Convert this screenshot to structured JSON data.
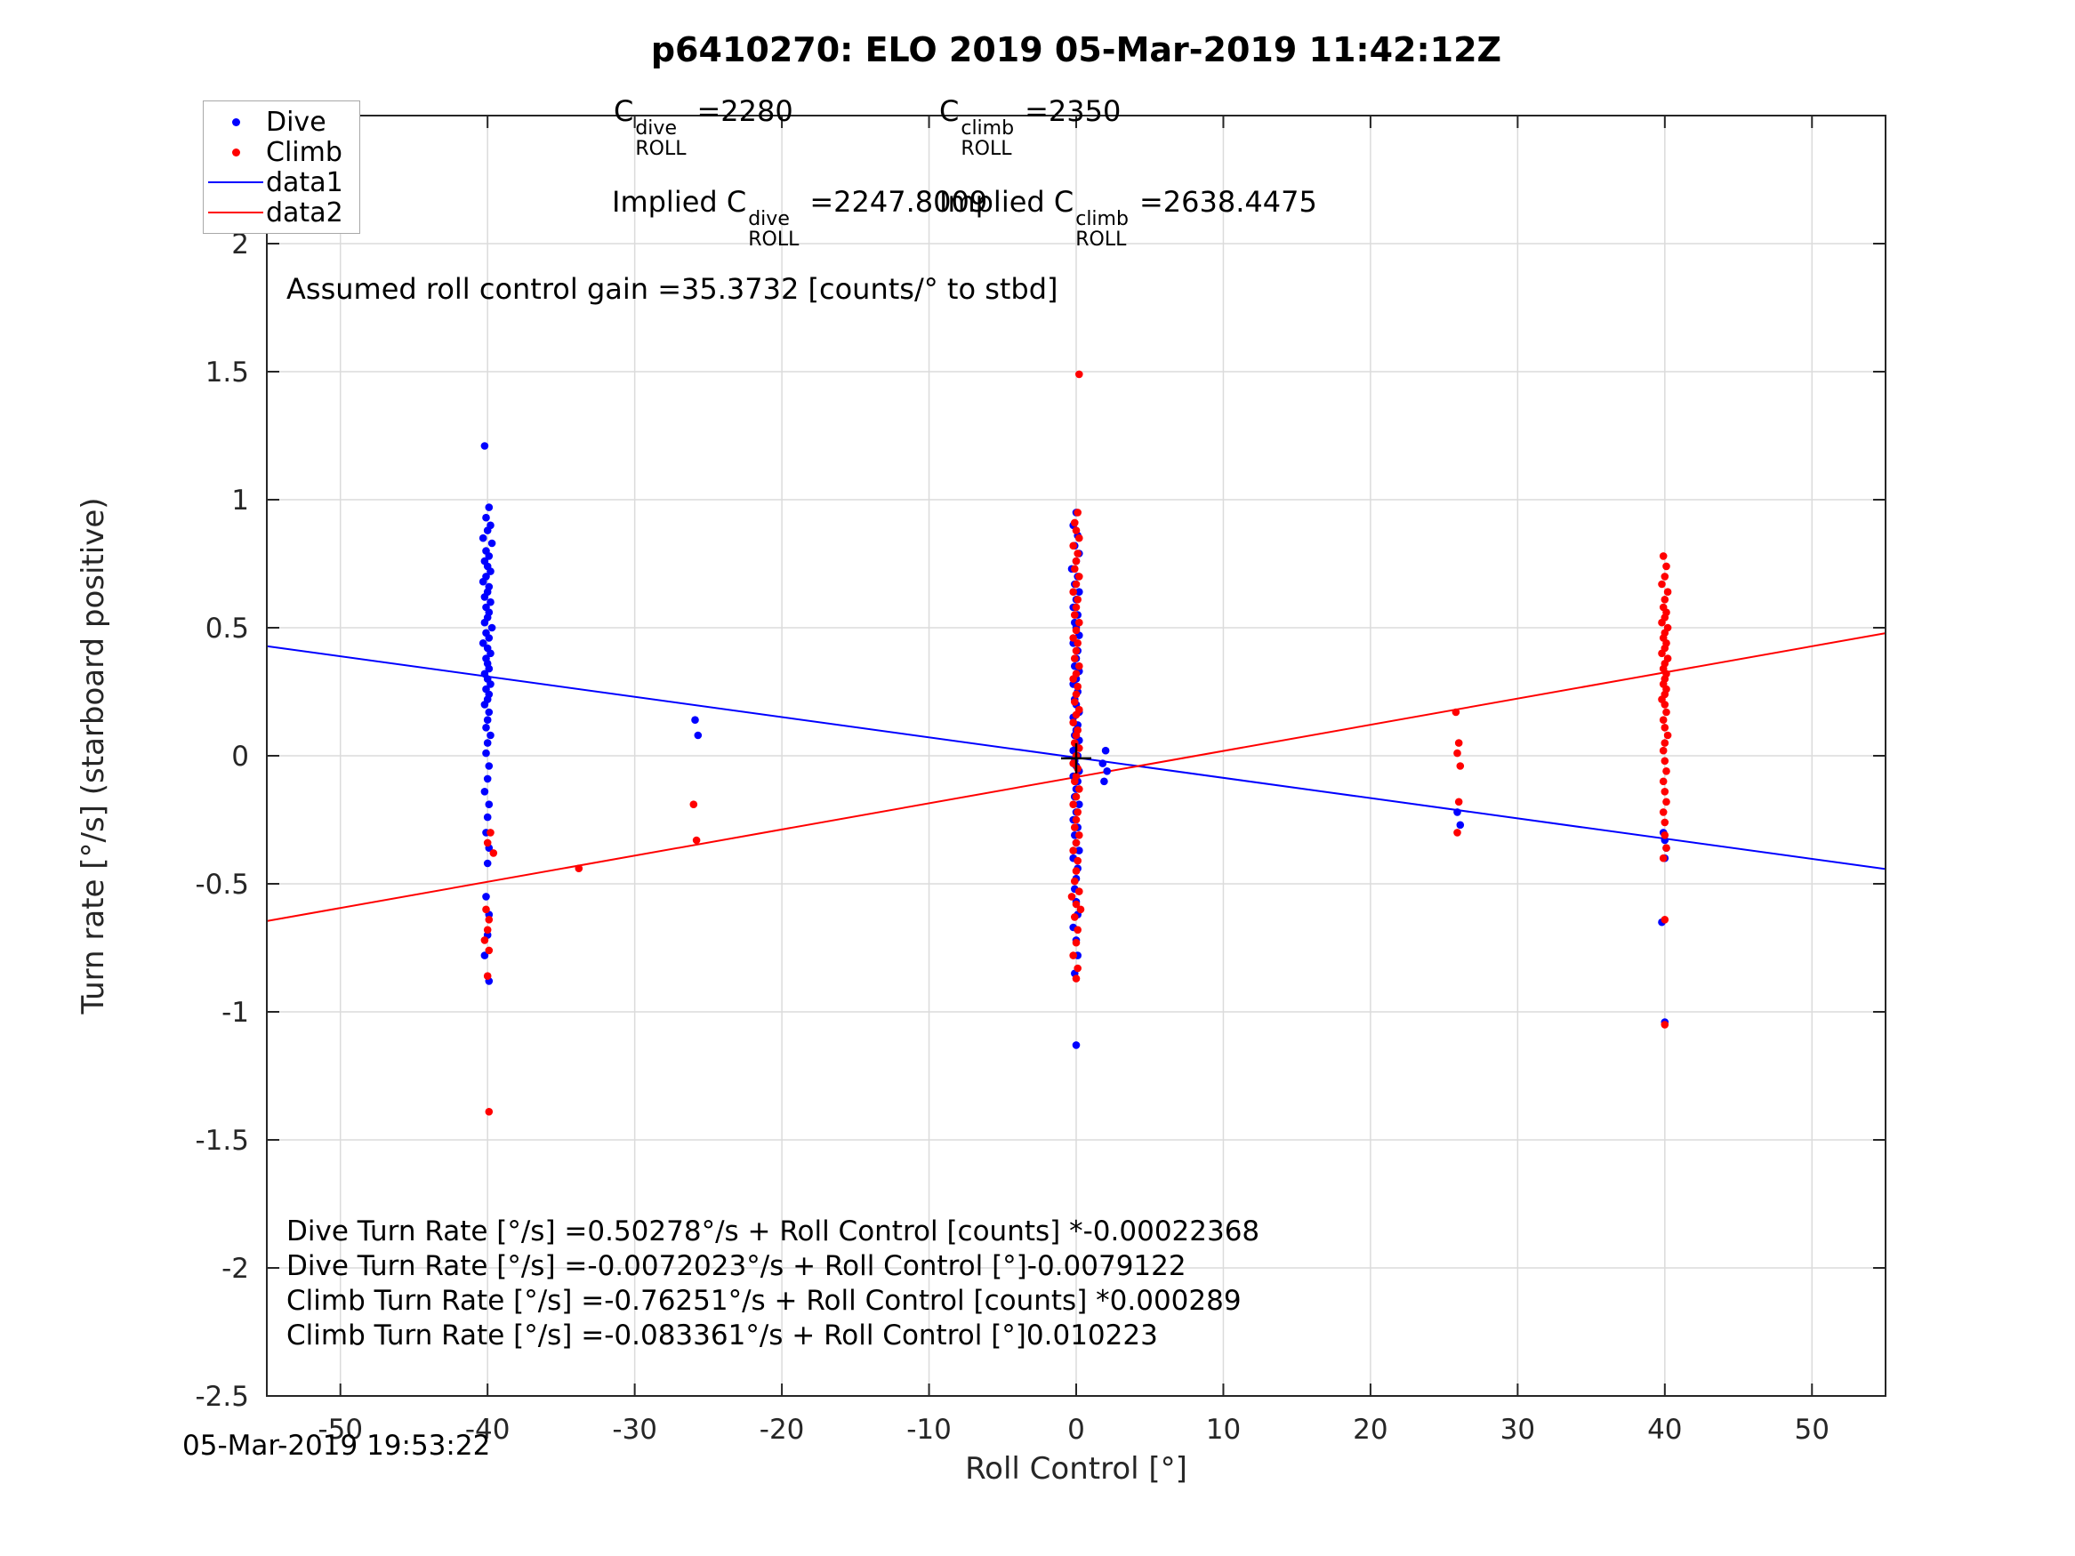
{
  "title": "p6410270: ELO 2019 05-Mar-2019 11:42:12Z",
  "timestamp": "05-Mar-2019 19:53:22",
  "legend": {
    "items": [
      {
        "label": "Dive",
        "marker": "dot",
        "color": "#0000ff"
      },
      {
        "label": "Climb",
        "marker": "dot",
        "color": "#ff0000"
      },
      {
        "label": "data1",
        "marker": "line",
        "color": "#0000ff"
      },
      {
        "label": "data2",
        "marker": "line",
        "color": "#ff0000"
      }
    ]
  },
  "annotations": {
    "c_dive": {
      "pre": "C",
      "sup": "dive",
      "sub": "ROLL",
      "val": "=2280"
    },
    "c_climb": {
      "pre": "C",
      "sup": "climb",
      "sub": "ROLL",
      "val": "=2350"
    },
    "implied_dive": {
      "pre": "Implied C",
      "sup": "dive",
      "sub": "ROLL",
      "val": "=2247.8009"
    },
    "implied_climb": {
      "pre": "Implied C",
      "sup": "climb",
      "sub": "ROLL",
      "val": "=2638.4475"
    },
    "gain": "Assumed roll control gain =35.3732 [counts/° to stbd]",
    "equations": [
      "Dive Turn Rate [°/s] =0.50278°/s + Roll Control [counts] *-0.00022368",
      "Dive Turn Rate [°/s] =-0.0072023°/s + Roll Control [°]-0.0079122",
      "Climb Turn Rate [°/s] =-0.76251°/s + Roll Control [counts] *0.000289",
      "Climb Turn Rate [°/s] =-0.083361°/s + Roll Control [°]0.010223"
    ]
  },
  "chart_data": {
    "type": "scatter",
    "title": "p6410270: ELO 2019 05-Mar-2019 11:42:12Z",
    "xlabel": "Roll Control [°]",
    "ylabel": "Turn rate [°/s] (starboard positive)",
    "xlim": [
      -55,
      55
    ],
    "ylim": [
      -2.5,
      2.5
    ],
    "xticks": [
      -50,
      -40,
      -30,
      -20,
      -10,
      0,
      10,
      20,
      30,
      40,
      50
    ],
    "yticks": [
      -2.5,
      -2,
      -1.5,
      -1,
      -0.5,
      0,
      0.5,
      1,
      1.5,
      2,
      2.5
    ],
    "xtick_labels": [
      "-50",
      "-40",
      "-30",
      "-20",
      "-10",
      "0",
      "10",
      "20",
      "30",
      "40",
      "50"
    ],
    "ytick_labels": [
      "-2.5",
      "-2",
      "-1.5",
      "-1",
      "-0.5",
      "0",
      "0.5",
      "1",
      "1.5",
      "2",
      "2.5"
    ],
    "grid": true,
    "legend_position": "top-left",
    "style": {
      "axis_color": "#262626",
      "grid_color": "#dbdbdb",
      "background": "#ffffff"
    },
    "plus_marker": [
      0,
      -0.01
    ],
    "fit_lines": [
      {
        "name": "data1",
        "color": "#0000ff",
        "slope": -0.0079122,
        "intercept": -0.0072023
      },
      {
        "name": "data2",
        "color": "#ff0000",
        "slope": 0.010223,
        "intercept": -0.083361
      }
    ],
    "series": [
      {
        "name": "Dive",
        "color": "#0000ff",
        "marker": "dot",
        "points": [
          [
            -40.2,
            1.21
          ],
          [
            -39.9,
            0.97
          ],
          [
            -40.1,
            0.93
          ],
          [
            -39.8,
            0.9
          ],
          [
            -40.0,
            0.88
          ],
          [
            -40.3,
            0.85
          ],
          [
            -39.7,
            0.83
          ],
          [
            -40.1,
            0.8
          ],
          [
            -39.9,
            0.78
          ],
          [
            -40.2,
            0.76
          ],
          [
            -40.0,
            0.74
          ],
          [
            -39.8,
            0.72
          ],
          [
            -40.1,
            0.7
          ],
          [
            -40.3,
            0.68
          ],
          [
            -39.9,
            0.66
          ],
          [
            -40.0,
            0.64
          ],
          [
            -40.2,
            0.62
          ],
          [
            -39.8,
            0.6
          ],
          [
            -40.1,
            0.58
          ],
          [
            -39.9,
            0.56
          ],
          [
            -40.0,
            0.54
          ],
          [
            -40.2,
            0.52
          ],
          [
            -39.7,
            0.5
          ],
          [
            -40.1,
            0.48
          ],
          [
            -39.9,
            0.46
          ],
          [
            -40.3,
            0.44
          ],
          [
            -40.0,
            0.42
          ],
          [
            -39.8,
            0.4
          ],
          [
            -40.1,
            0.38
          ],
          [
            -40.0,
            0.36
          ],
          [
            -39.9,
            0.34
          ],
          [
            -40.2,
            0.32
          ],
          [
            -40.0,
            0.3
          ],
          [
            -39.8,
            0.28
          ],
          [
            -40.1,
            0.26
          ],
          [
            -39.9,
            0.24
          ],
          [
            -40.0,
            0.22
          ],
          [
            -40.2,
            0.2
          ],
          [
            -39.9,
            0.17
          ],
          [
            -40.0,
            0.14
          ],
          [
            -40.1,
            0.11
          ],
          [
            -39.8,
            0.08
          ],
          [
            -40.0,
            0.05
          ],
          [
            -40.1,
            0.01
          ],
          [
            -39.9,
            -0.04
          ],
          [
            -40.0,
            -0.09
          ],
          [
            -40.2,
            -0.14
          ],
          [
            -39.9,
            -0.19
          ],
          [
            -40.0,
            -0.24
          ],
          [
            -40.1,
            -0.3
          ],
          [
            -39.9,
            -0.36
          ],
          [
            -40.0,
            -0.42
          ],
          [
            -40.1,
            -0.55
          ],
          [
            -39.9,
            -0.62
          ],
          [
            -40.0,
            -0.7
          ],
          [
            -40.2,
            -0.78
          ],
          [
            -39.9,
            -0.88
          ],
          [
            -25.9,
            0.14
          ],
          [
            -25.7,
            0.08
          ],
          [
            0.0,
            0.95
          ],
          [
            -0.2,
            0.9
          ],
          [
            0.1,
            0.86
          ],
          [
            -0.1,
            0.82
          ],
          [
            0.2,
            0.79
          ],
          [
            0.0,
            0.76
          ],
          [
            -0.3,
            0.73
          ],
          [
            0.1,
            0.7
          ],
          [
            -0.1,
            0.67
          ],
          [
            0.2,
            0.64
          ],
          [
            0.0,
            0.61
          ],
          [
            -0.2,
            0.58
          ],
          [
            0.1,
            0.55
          ],
          [
            -0.1,
            0.52
          ],
          [
            0.0,
            0.5
          ],
          [
            0.2,
            0.47
          ],
          [
            -0.2,
            0.44
          ],
          [
            0.1,
            0.41
          ],
          [
            0.0,
            0.38
          ],
          [
            -0.1,
            0.35
          ],
          [
            0.2,
            0.33
          ],
          [
            0.0,
            0.3
          ],
          [
            -0.2,
            0.28
          ],
          [
            0.1,
            0.25
          ],
          [
            -0.1,
            0.22
          ],
          [
            0.0,
            0.2
          ],
          [
            0.2,
            0.17
          ],
          [
            -0.2,
            0.15
          ],
          [
            0.1,
            0.12
          ],
          [
            0.0,
            0.1
          ],
          [
            -0.1,
            0.08
          ],
          [
            0.2,
            0.06
          ],
          [
            0.0,
            0.04
          ],
          [
            -0.2,
            0.02
          ],
          [
            0.1,
            0.0
          ],
          [
            -0.1,
            -0.02
          ],
          [
            0.0,
            -0.04
          ],
          [
            0.2,
            -0.06
          ],
          [
            -0.2,
            -0.08
          ],
          [
            0.1,
            -0.1
          ],
          [
            0.0,
            -0.13
          ],
          [
            -0.1,
            -0.16
          ],
          [
            0.2,
            -0.19
          ],
          [
            0.0,
            -0.22
          ],
          [
            -0.2,
            -0.25
          ],
          [
            0.1,
            -0.28
          ],
          [
            -0.1,
            -0.31
          ],
          [
            0.0,
            -0.34
          ],
          [
            0.2,
            -0.37
          ],
          [
            -0.2,
            -0.4
          ],
          [
            0.1,
            -0.44
          ],
          [
            0.0,
            -0.48
          ],
          [
            -0.1,
            -0.52
          ],
          [
            0.0,
            -0.57
          ],
          [
            0.1,
            -0.62
          ],
          [
            -0.2,
            -0.67
          ],
          [
            0.0,
            -0.72
          ],
          [
            0.1,
            -0.78
          ],
          [
            -0.1,
            -0.85
          ],
          [
            0.0,
            -1.13
          ],
          [
            1.8,
            -0.03
          ],
          [
            2.1,
            -0.06
          ],
          [
            1.9,
            -0.1
          ],
          [
            2.0,
            0.02
          ],
          [
            25.9,
            -0.22
          ],
          [
            26.1,
            -0.27
          ],
          [
            39.9,
            -0.3
          ],
          [
            40.0,
            -0.33
          ],
          [
            40.1,
            -0.36
          ],
          [
            40.0,
            -0.4
          ],
          [
            39.8,
            -0.65
          ],
          [
            40.0,
            -1.04
          ]
        ]
      },
      {
        "name": "Climb",
        "color": "#ff0000",
        "marker": "dot",
        "points": [
          [
            -39.8,
            -0.3
          ],
          [
            -40.0,
            -0.34
          ],
          [
            -39.6,
            -0.38
          ],
          [
            -40.1,
            -0.6
          ],
          [
            -39.9,
            -0.64
          ],
          [
            -40.0,
            -0.68
          ],
          [
            -40.2,
            -0.72
          ],
          [
            -39.9,
            -0.76
          ],
          [
            -40.0,
            -0.86
          ],
          [
            -39.9,
            -1.39
          ],
          [
            -33.8,
            -0.44
          ],
          [
            -26.0,
            -0.19
          ],
          [
            -25.8,
            -0.33
          ],
          [
            0.2,
            1.49
          ],
          [
            0.1,
            0.95
          ],
          [
            -0.1,
            0.91
          ],
          [
            0.0,
            0.88
          ],
          [
            0.2,
            0.85
          ],
          [
            -0.2,
            0.82
          ],
          [
            0.1,
            0.79
          ],
          [
            0.0,
            0.76
          ],
          [
            -0.1,
            0.73
          ],
          [
            0.2,
            0.7
          ],
          [
            0.0,
            0.67
          ],
          [
            -0.2,
            0.64
          ],
          [
            0.1,
            0.61
          ],
          [
            0.0,
            0.58
          ],
          [
            -0.1,
            0.55
          ],
          [
            0.2,
            0.52
          ],
          [
            0.0,
            0.49
          ],
          [
            -0.2,
            0.46
          ],
          [
            0.1,
            0.44
          ],
          [
            0.0,
            0.41
          ],
          [
            -0.1,
            0.38
          ],
          [
            0.2,
            0.35
          ],
          [
            0.0,
            0.32
          ],
          [
            -0.2,
            0.3
          ],
          [
            0.1,
            0.27
          ],
          [
            0.0,
            0.24
          ],
          [
            -0.1,
            0.21
          ],
          [
            0.2,
            0.18
          ],
          [
            0.0,
            0.16
          ],
          [
            -0.2,
            0.13
          ],
          [
            0.1,
            0.1
          ],
          [
            0.0,
            0.08
          ],
          [
            -0.1,
            0.05
          ],
          [
            0.2,
            0.03
          ],
          [
            0.0,
            0.0
          ],
          [
            -0.2,
            -0.03
          ],
          [
            0.1,
            -0.05
          ],
          [
            0.0,
            -0.08
          ],
          [
            -0.1,
            -0.1
          ],
          [
            0.2,
            -0.13
          ],
          [
            0.0,
            -0.16
          ],
          [
            -0.2,
            -0.19
          ],
          [
            0.1,
            -0.22
          ],
          [
            0.0,
            -0.25
          ],
          [
            -0.1,
            -0.28
          ],
          [
            0.2,
            -0.31
          ],
          [
            0.0,
            -0.34
          ],
          [
            -0.2,
            -0.37
          ],
          [
            0.1,
            -0.41
          ],
          [
            0.0,
            -0.45
          ],
          [
            -0.1,
            -0.49
          ],
          [
            0.2,
            -0.53
          ],
          [
            -0.3,
            -0.55
          ],
          [
            0.0,
            -0.58
          ],
          [
            0.3,
            -0.6
          ],
          [
            -0.1,
            -0.63
          ],
          [
            0.1,
            -0.68
          ],
          [
            0.0,
            -0.73
          ],
          [
            -0.2,
            -0.78
          ],
          [
            0.1,
            -0.83
          ],
          [
            0.0,
            -0.87
          ],
          [
            25.8,
            0.17
          ],
          [
            26.0,
            0.05
          ],
          [
            25.9,
            0.01
          ],
          [
            26.1,
            -0.04
          ],
          [
            26.0,
            -0.18
          ],
          [
            25.9,
            -0.3
          ],
          [
            39.9,
            0.78
          ],
          [
            40.1,
            0.74
          ],
          [
            40.0,
            0.7
          ],
          [
            39.8,
            0.67
          ],
          [
            40.2,
            0.64
          ],
          [
            40.0,
            0.61
          ],
          [
            39.9,
            0.58
          ],
          [
            40.1,
            0.56
          ],
          [
            40.0,
            0.54
          ],
          [
            39.8,
            0.52
          ],
          [
            40.2,
            0.5
          ],
          [
            40.0,
            0.48
          ],
          [
            39.9,
            0.46
          ],
          [
            40.1,
            0.44
          ],
          [
            40.0,
            0.42
          ],
          [
            39.8,
            0.4
          ],
          [
            40.2,
            0.38
          ],
          [
            40.0,
            0.36
          ],
          [
            39.9,
            0.34
          ],
          [
            40.1,
            0.32
          ],
          [
            40.0,
            0.3
          ],
          [
            39.9,
            0.28
          ],
          [
            40.1,
            0.26
          ],
          [
            40.0,
            0.24
          ],
          [
            39.8,
            0.22
          ],
          [
            40.0,
            0.2
          ],
          [
            40.1,
            0.17
          ],
          [
            39.9,
            0.14
          ],
          [
            40.0,
            0.11
          ],
          [
            40.2,
            0.08
          ],
          [
            40.0,
            0.05
          ],
          [
            39.9,
            0.02
          ],
          [
            40.0,
            -0.02
          ],
          [
            40.1,
            -0.06
          ],
          [
            39.9,
            -0.1
          ],
          [
            40.0,
            -0.14
          ],
          [
            40.1,
            -0.18
          ],
          [
            39.9,
            -0.22
          ],
          [
            40.0,
            -0.26
          ],
          [
            40.0,
            -0.31
          ],
          [
            40.1,
            -0.36
          ],
          [
            39.9,
            -0.4
          ],
          [
            40.0,
            -0.64
          ],
          [
            40.0,
            -1.05
          ]
        ]
      }
    ]
  }
}
